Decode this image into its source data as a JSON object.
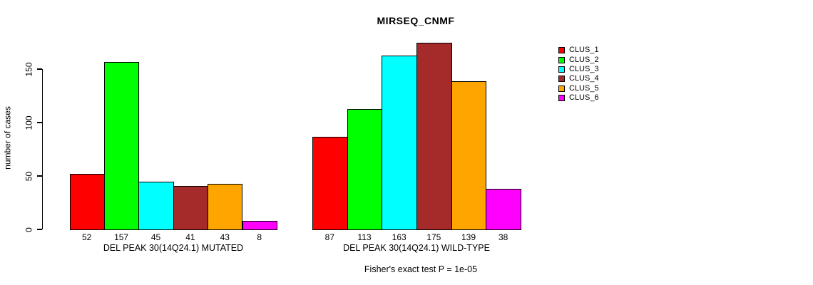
{
  "chart_data": {
    "type": "bar",
    "title": "MIRSEQ_CNMF",
    "ylabel": "number of cases",
    "subtitle": "Fisher's exact test P = 1e-05",
    "yticks": [
      0,
      50,
      100,
      150
    ],
    "ylim": [
      0,
      175
    ],
    "grid": false,
    "legend_position": "right",
    "bar_border_color": "#000000",
    "groups": [
      {
        "label": "DEL PEAK 30(14Q24.1) MUTATED",
        "values": [
          52,
          157,
          45,
          41,
          43,
          8
        ]
      },
      {
        "label": "DEL PEAK 30(14Q24.1) WILD-TYPE",
        "values": [
          87,
          113,
          163,
          175,
          139,
          38
        ]
      }
    ],
    "legend": [
      {
        "label": "CLUS_1",
        "color": "#FF0000"
      },
      {
        "label": "CLUS_2",
        "color": "#00FF00"
      },
      {
        "label": "CLUS_3",
        "color": "#00FFFF"
      },
      {
        "label": "CLUS_4",
        "color": "#A52A2A"
      },
      {
        "label": "CLUS_5",
        "color": "#FFA500"
      },
      {
        "label": "CLUS_6",
        "color": "#FF00FF"
      }
    ]
  }
}
